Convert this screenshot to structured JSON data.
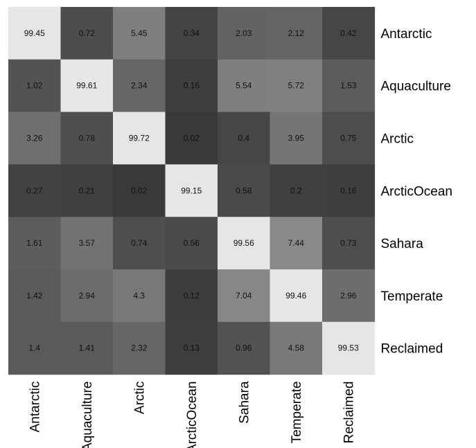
{
  "chart_data": {
    "type": "heatmap",
    "title": "",
    "xlabel": "",
    "ylabel": "",
    "rows": [
      "Antarctic",
      "Aquaculture",
      "Arctic",
      "ArcticOcean",
      "Sahara",
      "Temperate",
      "Reclaimed"
    ],
    "columns": [
      "Antarctic",
      "Aquaculture",
      "Arctic",
      "ArcticOcean",
      "Sahara",
      "Temperate",
      "Reclaimed"
    ],
    "values": [
      [
        99.45,
        0.72,
        5.45,
        0.34,
        2.03,
        2.12,
        0.42
      ],
      [
        1.02,
        99.61,
        2.34,
        0.16,
        5.54,
        5.72,
        1.53
      ],
      [
        3.26,
        0.78,
        99.72,
        0.02,
        0.4,
        3.95,
        0.75
      ],
      [
        0.27,
        0.21,
        0.02,
        99.15,
        0.58,
        0.2,
        0.16
      ],
      [
        1.61,
        3.57,
        0.74,
        0.56,
        99.56,
        7.44,
        0.73
      ],
      [
        1.42,
        2.94,
        4.3,
        0.12,
        7.04,
        99.46,
        2.96
      ],
      [
        1.4,
        1.41,
        2.32,
        0.13,
        0.96,
        4.58,
        99.53
      ]
    ],
    "colormap": "grayscale",
    "grid": false,
    "colorbar": false
  }
}
